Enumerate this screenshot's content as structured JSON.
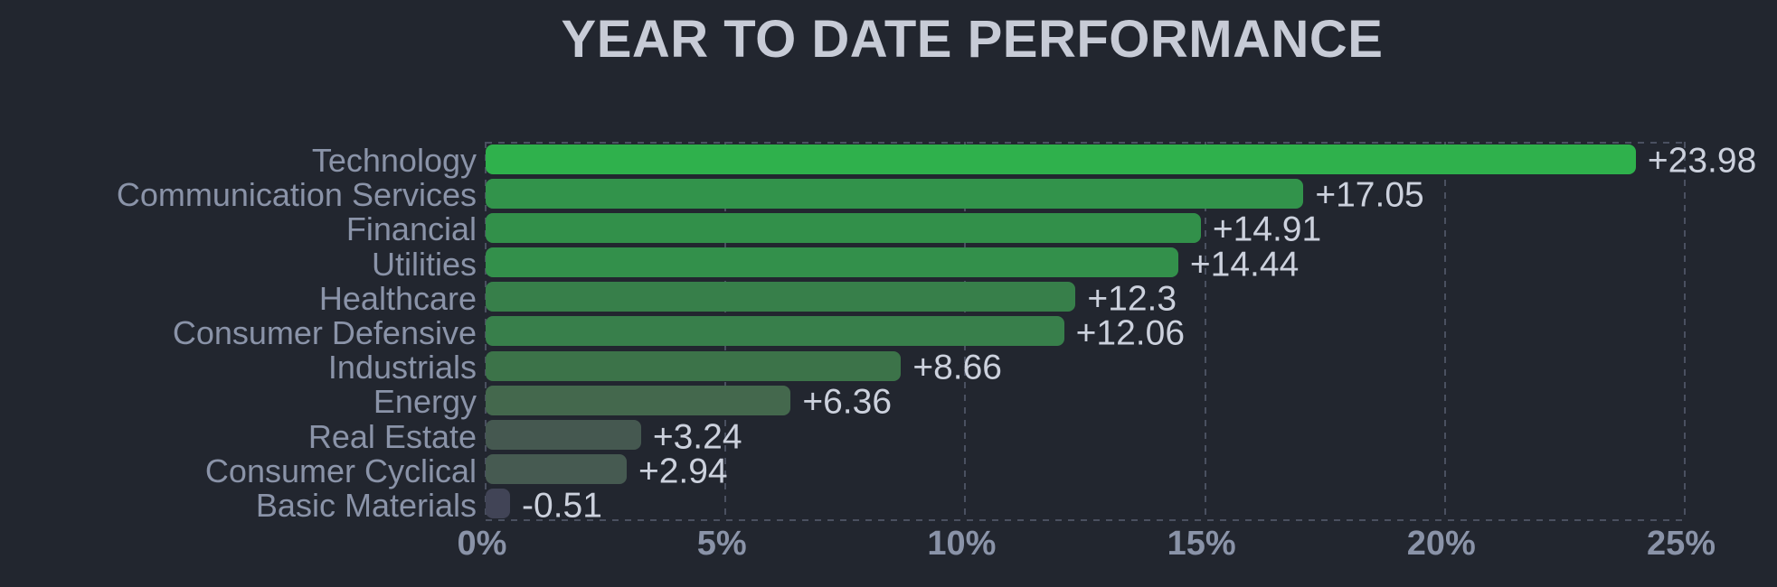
{
  "title": "YEAR TO DATE PERFORMANCE",
  "colors": {
    "background": "#22262f",
    "title": "#c7cbd6",
    "category_label": "#8a93a8",
    "value_label": "#ccd1dd",
    "axis_label": "#8a93a8",
    "gridline": "#4a5060"
  },
  "chart_data": {
    "type": "bar",
    "orientation": "horizontal",
    "title": "YEAR TO DATE PERFORMANCE",
    "categories": [
      "Technology",
      "Communication Services",
      "Financial",
      "Utilities",
      "Healthcare",
      "Consumer Defensive",
      "Industrials",
      "Energy",
      "Real Estate",
      "Consumer Cyclical",
      "Basic Materials"
    ],
    "values": [
      23.98,
      17.05,
      14.91,
      14.44,
      12.3,
      12.06,
      8.66,
      6.36,
      3.24,
      2.94,
      -0.51
    ],
    "value_labels": [
      "+23.98",
      "+17.05",
      "+14.91",
      "+14.44",
      "+12.3",
      "+12.06",
      "+8.66",
      "+6.36",
      "+3.24",
      "+2.94",
      "-0.51"
    ],
    "bar_colors": [
      "#2fb14c",
      "#32934b",
      "#32904a",
      "#33904b",
      "#377f4a",
      "#387f4b",
      "#3c7349",
      "#44684d",
      "#455850",
      "#465a51",
      "#414456"
    ],
    "x_ticks": [
      "0%",
      "5%",
      "10%",
      "15%",
      "20%",
      "25%"
    ],
    "x_tick_values": [
      0,
      5,
      10,
      15,
      20,
      25
    ],
    "xlim": [
      0,
      25
    ],
    "xlabel": "",
    "ylabel": "",
    "legend": "none",
    "grid": "dashed vertical lines at x ticks; dashed top and bottom plot borders",
    "notes": "negative bar drawn at axis with absolute width in slate gray"
  }
}
